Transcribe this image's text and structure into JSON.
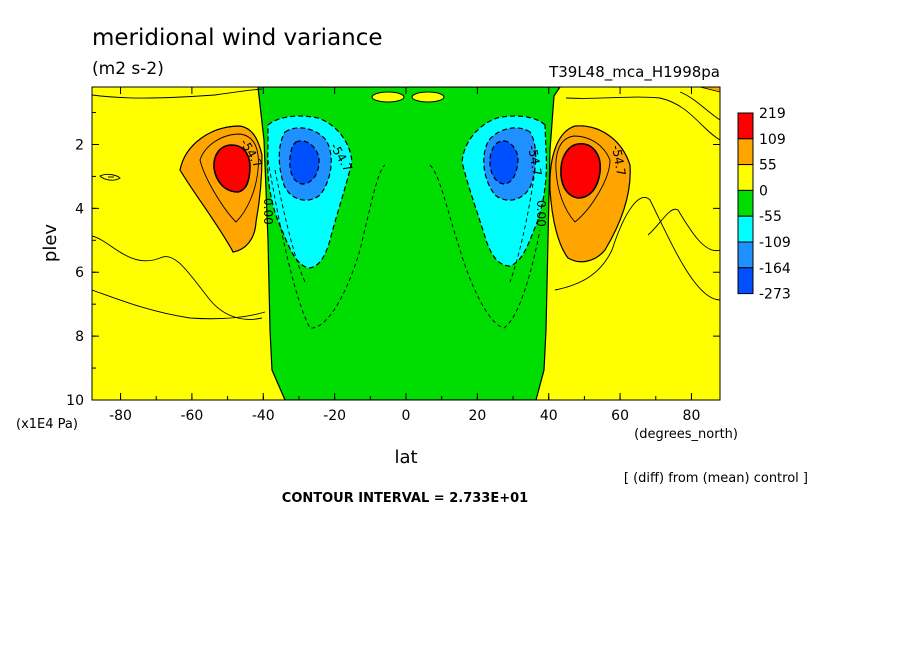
{
  "chart_data": {
    "type": "contour",
    "title": "meridional wind variance",
    "units": "(m2 s-2)",
    "run_label": "T39L48_mca_H1998pa",
    "xlabel": "lat",
    "xunit": "(degrees_north)",
    "ylabel": "plev",
    "yunit": "(x1E4 Pa)",
    "x_ticks": [
      "-80",
      "-60",
      "-40",
      "-20",
      "0",
      "20",
      "40",
      "60",
      "80"
    ],
    "y_ticks": [
      "2",
      "4",
      "6",
      "8",
      "10"
    ],
    "xlim": [
      -88,
      88
    ],
    "ylim": [
      0.2,
      10
    ],
    "y_inverted": true,
    "colorbar": {
      "levels": [
        "219",
        "109",
        "55",
        "0",
        "-55",
        "-109",
        "-164",
        "-273"
      ],
      "colors": [
        "#ff0000",
        "#ffa500",
        "#ffff00",
        "#00dd00",
        "#00ffff",
        "#1e90ff",
        "#0050ff"
      ]
    },
    "contour_labels": [
      "-54.7",
      "-54.7",
      "-54.7",
      "-54.7",
      "0.00",
      "0.00"
    ],
    "note": "[ (diff) from (mean) control ]",
    "contour_interval": "CONTOUR INTERVAL = 2.733E+01",
    "features": [
      {
        "name": "positive maximum SH",
        "lat": -47,
        "plev": 2.7,
        "value_range": ">109"
      },
      {
        "name": "negative minimum SH",
        "lat": -30,
        "plev": 2.5,
        "value_range": "<-164"
      },
      {
        "name": "negative minimum NH",
        "lat": 29,
        "plev": 2.5,
        "value_range": "<-164"
      },
      {
        "name": "positive maximum NH",
        "lat": 47,
        "plev": 2.7,
        "value_range": ">109"
      }
    ]
  }
}
